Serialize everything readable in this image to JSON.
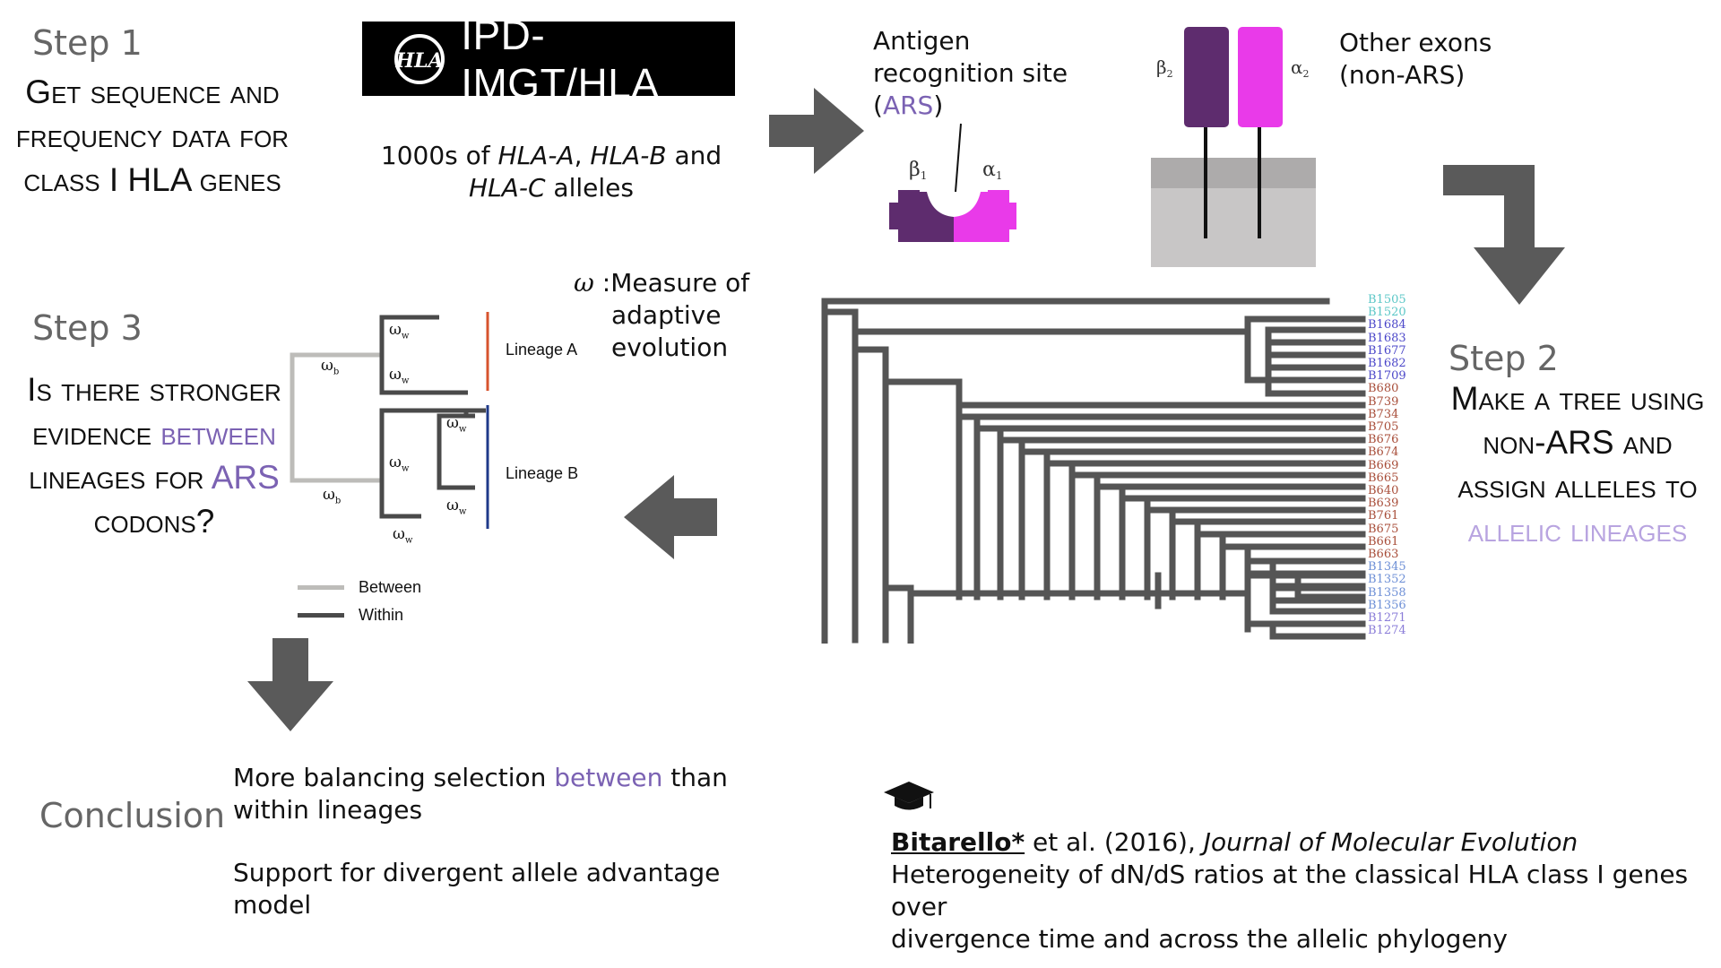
{
  "step1": {
    "title": "Step 1",
    "lines": [
      "Get sequence and",
      "frequency data for",
      "class I HLA genes"
    ]
  },
  "logo": {
    "text": "IPD-IMGT/HLA",
    "mark": "HLA"
  },
  "alleles": {
    "count": "1000s of",
    "gene_a": "HLA-A",
    "sep": ",",
    "gene_b": "HLA-B",
    "and": "and",
    "gene_c": "HLA-C",
    "suffix": "alleles"
  },
  "ars": {
    "line1": "Antigen",
    "line2": "recognition site",
    "open": "(",
    "abbr": "ARS",
    "close": ")",
    "beta1": "β1",
    "alpha1": "α1"
  },
  "exons": {
    "line1": "Other exons",
    "line2": "(non-ARS)",
    "beta2": "β2",
    "alpha2": "α2"
  },
  "step2": {
    "title": "Step 2",
    "line1_a": "Make a tree using",
    "line2_a": "non-",
    "line2_b": "ARS",
    "line2_c": " and",
    "line3": "assign alleles to",
    "line4": "allelic lineages"
  },
  "tree": {
    "labels": [
      {
        "text": "B1505",
        "color": "#5bc7c7"
      },
      {
        "text": "B1520",
        "color": "#5bc7c7"
      },
      {
        "text": "B1684",
        "color": "#4b47c9"
      },
      {
        "text": "B1683",
        "color": "#4b47c9"
      },
      {
        "text": "B1677",
        "color": "#4b47c9"
      },
      {
        "text": "B1682",
        "color": "#4b47c9"
      },
      {
        "text": "B1709",
        "color": "#4b47c9"
      },
      {
        "text": "B680",
        "color": "#a84e3a"
      },
      {
        "text": "B739",
        "color": "#a84e3a"
      },
      {
        "text": "B734",
        "color": "#a84e3a"
      },
      {
        "text": "B705",
        "color": "#a84e3a"
      },
      {
        "text": "B676",
        "color": "#a84e3a"
      },
      {
        "text": "B674",
        "color": "#a84e3a"
      },
      {
        "text": "B669",
        "color": "#a84e3a"
      },
      {
        "text": "B665",
        "color": "#a84e3a"
      },
      {
        "text": "B640",
        "color": "#a84e3a"
      },
      {
        "text": "B639",
        "color": "#a84e3a"
      },
      {
        "text": "B761",
        "color": "#a84e3a"
      },
      {
        "text": "B675",
        "color": "#a84e3a"
      },
      {
        "text": "B661",
        "color": "#a84e3a"
      },
      {
        "text": "B663",
        "color": "#a84e3a"
      },
      {
        "text": "B1345",
        "color": "#6d8fd6"
      },
      {
        "text": "B1352",
        "color": "#6d8fd6"
      },
      {
        "text": "B1358",
        "color": "#6d8fd6"
      },
      {
        "text": "B1356",
        "color": "#6d8fd6"
      },
      {
        "text": "B1271",
        "color": "#8a7cd8"
      },
      {
        "text": "B1274",
        "color": "#8a7cd8"
      }
    ]
  },
  "omega_def": {
    "symbol": "ω",
    "colon": ":",
    "line1": "Measure of",
    "line2": "adaptive",
    "line3": "evolution"
  },
  "step3": {
    "title": "Step 3",
    "line1": "Is there stronger",
    "line2_a": "evidence ",
    "line2_b": "between",
    "line3_a": "lineages for ",
    "line3_b": "ARS",
    "line4": "codons?"
  },
  "lineage_diagram": {
    "lineage_a": "Lineage A",
    "lineage_b": "Lineage B",
    "omega": "ω",
    "sub_w": "w",
    "sub_b": "b",
    "legend_between": "Between",
    "legend_within": "Within",
    "between_color": "#bdbcb9",
    "within_color": "#4a4a4a",
    "lineage_a_color": "#d7532e",
    "lineage_b_color": "#1f3a8a"
  },
  "conclusion": {
    "title": "Conclusion",
    "l1_a": "More balancing selection ",
    "l1_b": "between",
    "l1_c": " than",
    "l2": "within lineages",
    "l3": "Support for divergent allele advantage",
    "l4": "model"
  },
  "citation": {
    "icon": "graduation-cap-icon",
    "author": "Bitarello*",
    "etal": " et al. (2016), ",
    "journal": "Journal of Molecular Evolution",
    "title1": "Heterogeneity of dN/dS ratios at the classical HLA class I genes over",
    "title2": "divergence time and across the allelic phylogeny"
  },
  "colors": {
    "arrow": "#5a5a5a",
    "accent_purple": "#7b62b3",
    "lilac": "#b8a4e0",
    "beta_purple": "#5e2c6e",
    "alpha_magenta": "#e93ae9",
    "membrane_grey": "#bdbbbb"
  }
}
